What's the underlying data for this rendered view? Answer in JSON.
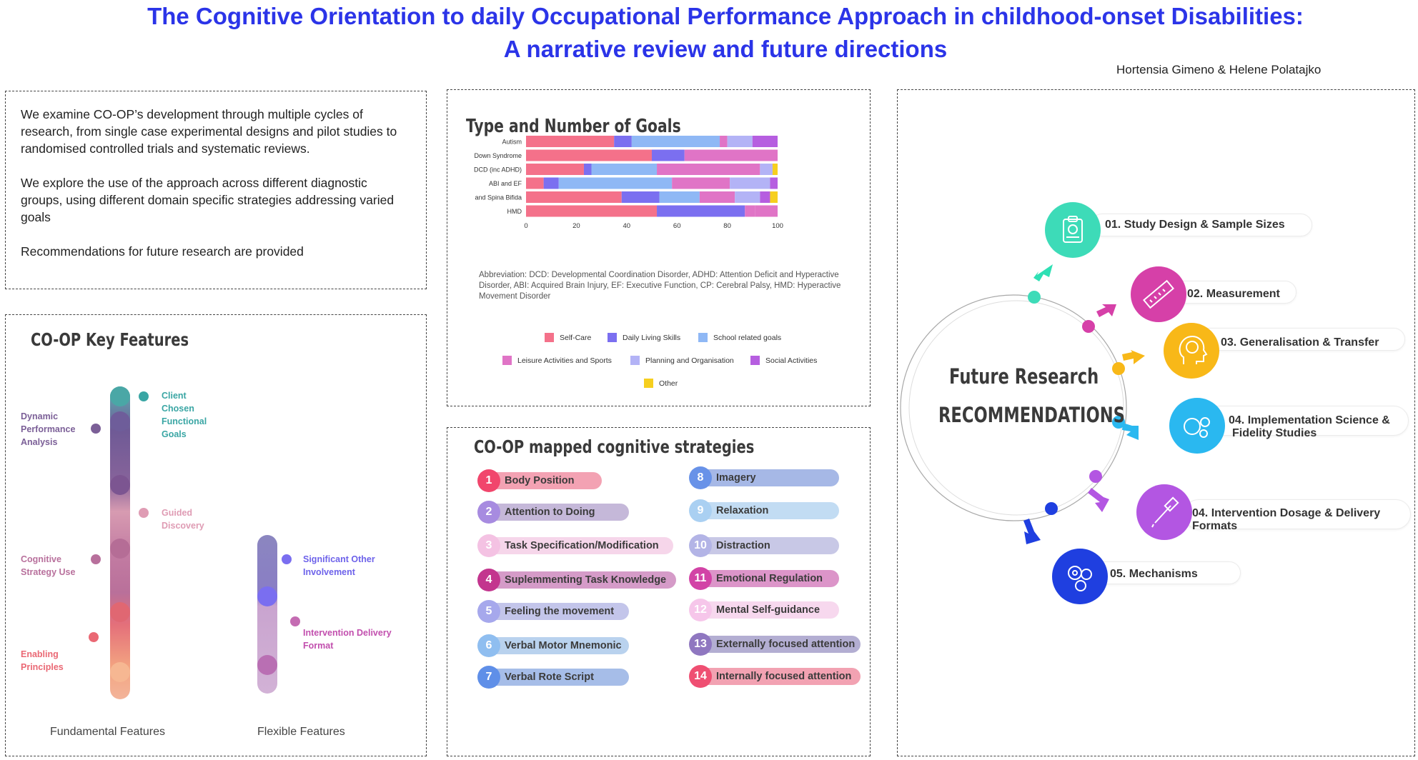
{
  "header": {
    "title_line1": "The Cognitive Orientation to daily Occupational Performance Approach in childhood-onset Disabilities:",
    "title_line2": "A narrative review and future directions",
    "authors": "Hortensia Gimeno & Helene Polatajko"
  },
  "intro": {
    "p1": "We examine CO-OP’s development through multiple cycles of research, from single case experimental designs  and pilot studies to randomised controlled trials and systematic reviews.",
    "p2": " We explore the use of the approach across different diagnostic groups, using different domain specific strategies addressing varied goals",
    "p3": "Recommendations for future research are provided"
  },
  "goals_chart": {
    "heading": "Type and Number of Goals",
    "abbreviation": "Abbreviation: DCD: Developmental Coordination Disorder, ADHD: Attention Deficit and Hyperactive Disorder, ABI: Acquired Brain Injury, EF: Executive Function, CP: Cerebral Palsy, HMD: Hyperactive Movement Disorder",
    "legend": [
      "Self-Care",
      "Daily Living Skills",
      "School related goals",
      "Leisure Activities and Sports",
      "Planning and Organisation",
      "Social Activities",
      "Other"
    ]
  },
  "chart_data": {
    "type": "bar",
    "orientation": "horizontal",
    "stacked": true,
    "title": "Type and Number of Goals",
    "categories": [
      "Autism",
      "Down Syndrome",
      "DCD (inc ADHD)",
      "ABI and EF",
      "and Spina Bifida",
      "HMD"
    ],
    "xlim": [
      0,
      100
    ],
    "xticks": [
      0,
      20,
      40,
      60,
      80,
      100
    ],
    "legend_position": "bottom",
    "series": [
      {
        "name": "Self-Care",
        "color": "#f4718a",
        "values": [
          35,
          50,
          23,
          7,
          38,
          52
        ]
      },
      {
        "name": "Daily Living Skills",
        "color": "#7b6ff0",
        "values": [
          7,
          13,
          3,
          6,
          15,
          35
        ]
      },
      {
        "name": "School related goals",
        "color": "#8fb8f5",
        "values": [
          35,
          0,
          26,
          45,
          16,
          0
        ]
      },
      {
        "name": "Leisure Activities and Sports",
        "color": "#e074c6",
        "values": [
          3,
          37,
          41,
          23,
          14,
          4
        ]
      },
      {
        "name": "Planning and Organisation",
        "color": "#b3b3f6",
        "values": [
          10,
          0,
          5,
          16,
          10,
          0
        ]
      },
      {
        "name": "Social Activities",
        "color": "#b65ee0",
        "values": [
          10,
          0,
          0,
          3,
          4,
          0
        ]
      },
      {
        "name": "Other",
        "color": "#f6cf1f",
        "values": [
          0,
          0,
          2,
          0,
          3,
          0
        ]
      },
      {
        "name": "",
        "color": "#e074c6",
        "values": [
          0,
          0,
          0,
          0,
          0,
          9
        ]
      }
    ]
  },
  "features": {
    "heading": "CO-OP Key Features",
    "fundamental": [
      "Dynamic Performance Analysis",
      "Client Chosen Functional Goals",
      "Guided Discovery",
      "Cognitive Strategy Use",
      "Enabling Principles"
    ],
    "flexible": [
      "Significant Other Involvement",
      "Intervention Delivery Format"
    ],
    "fundamental_label": "Fundamental Features",
    "flexible_label": "Flexible Features"
  },
  "strategies": {
    "heading": "CO-OP mapped cognitive strategies",
    "items": [
      {
        "n": "1",
        "label": "Body Position"
      },
      {
        "n": "2",
        "label": "Attention to Doing"
      },
      {
        "n": "3",
        "label": "Task Specification/Modification"
      },
      {
        "n": "4",
        "label": "Suplemmenting Task Knowledge"
      },
      {
        "n": "5",
        "label": "Feeling the movement"
      },
      {
        "n": "6",
        "label": "Verbal Motor Mnemonic"
      },
      {
        "n": "7",
        "label": "Verbal Rote Script"
      },
      {
        "n": "8",
        "label": "Imagery"
      },
      {
        "n": "9",
        "label": "Relaxation"
      },
      {
        "n": "10",
        "label": "Distraction"
      },
      {
        "n": "11",
        "label": "Emotional Regulation"
      },
      {
        "n": "12",
        "label": "Mental Self-guidance"
      },
      {
        "n": "13",
        "label": "Externally focused attention"
      },
      {
        "n": "14",
        "label": "Internally focused attention"
      }
    ]
  },
  "future": {
    "title_line1": "Future Research",
    "title_line2": "RECOMMENDATIONS",
    "items": [
      {
        "label": "01. Study Design & Sample Sizes",
        "icon": "clipboard-gear-icon",
        "color": "#3ddbb8"
      },
      {
        "label": "02. Measurement",
        "icon": "ruler-icon",
        "color": "#d640a8"
      },
      {
        "label": "03. Generalisation & Transfer",
        "icon": "brain-head-icon",
        "color": "#f8b818"
      },
      {
        "label": "04. Implementation Science &",
        "label2": "Fidelity Studies",
        "icon": "brain-gears-icon",
        "color": "#2ab8f0"
      },
      {
        "label": "04. Intervention Dosage & Delivery",
        "label2": "Formats",
        "icon": "dropper-icon",
        "color": "#b356e2"
      },
      {
        "label": "05. Mechanisms",
        "icon": "gears-icon",
        "color": "#1f3fe0"
      }
    ]
  }
}
